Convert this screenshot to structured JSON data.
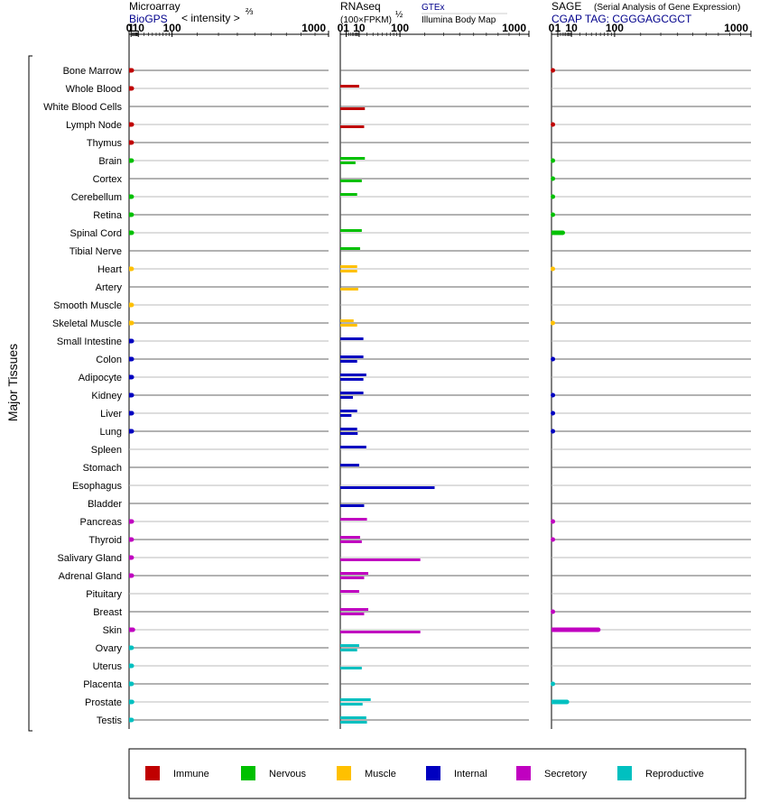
{
  "panels": {
    "microarray": {
      "title": "Microarray",
      "source": "BioGPS",
      "scale_label": "< intensity >",
      "exponent": "⅔",
      "ticks": [
        "0",
        "1",
        "10",
        "100",
        "1000"
      ]
    },
    "rnaseq": {
      "title": "RNAseq",
      "unit": "(100×FPKM)",
      "exponent": "½",
      "source_a": "GTEx",
      "source_b": "Illumina Body Map",
      "ticks": [
        "0",
        "1",
        "10",
        "100",
        "1000"
      ]
    },
    "sage": {
      "title": "SAGE",
      "subtitle": "(Serial Analysis of Gene Expression)",
      "tag": "CGAP TAG: CGGGAGCGCT",
      "ticks": [
        "0",
        "1",
        "10",
        "100",
        "1000"
      ]
    }
  },
  "y_axis_label": "Major Tissues",
  "colors": {
    "Immune": "#c00000",
    "Nervous": "#00c000",
    "Muscle": "#ffc000",
    "Internal": "#0000c0",
    "Secretory": "#c000c0",
    "Reproductive": "#00c0c0"
  },
  "legend": [
    "Immune",
    "Nervous",
    "Muscle",
    "Internal",
    "Secretory",
    "Reproductive"
  ],
  "chart_data": {
    "type": "bar",
    "axis_scale": "power",
    "xlim": [
      0,
      1000
    ],
    "tissues": [
      {
        "name": "Bone Marrow",
        "group": "Immune",
        "micro": 1.6,
        "gtex": null,
        "ibm": null,
        "sage": 0.05
      },
      {
        "name": "Whole Blood",
        "group": "Immune",
        "micro": 1.6,
        "gtex": 10,
        "ibm": null,
        "sage": null
      },
      {
        "name": "White Blood Cells",
        "group": "Immune",
        "micro": null,
        "gtex": null,
        "ibm": 17,
        "sage": null
      },
      {
        "name": "Lymph Node",
        "group": "Immune",
        "micro": 1.6,
        "gtex": null,
        "ibm": 16,
        "sage": 0.05
      },
      {
        "name": "Thymus",
        "group": "Immune",
        "micro": 1.5,
        "gtex": null,
        "ibm": null,
        "sage": null
      },
      {
        "name": "Brain",
        "group": "Nervous",
        "micro": 1.5,
        "gtex": 17,
        "ibm": 6.5,
        "sage": 0.05
      },
      {
        "name": "Cortex",
        "group": "Nervous",
        "micro": null,
        "gtex": null,
        "ibm": 13,
        "sage": 0.05
      },
      {
        "name": "Cerebellum",
        "group": "Nervous",
        "micro": 1.5,
        "gtex": 8,
        "ibm": null,
        "sage": 0.05
      },
      {
        "name": "Retina",
        "group": "Nervous",
        "micro": 1.5,
        "gtex": null,
        "ibm": null,
        "sage": 0.05
      },
      {
        "name": "Spinal Cord",
        "group": "Nervous",
        "micro": 1.6,
        "gtex": 13,
        "ibm": null,
        "sage": 3.2
      },
      {
        "name": "Tibial Nerve",
        "group": "Nervous",
        "micro": null,
        "gtex": 11,
        "ibm": null,
        "sage": null
      },
      {
        "name": "Heart",
        "group": "Muscle",
        "micro": 1.5,
        "gtex": 8,
        "ibm": 8,
        "sage": 0.03
      },
      {
        "name": "Artery",
        "group": "Muscle",
        "micro": null,
        "gtex": null,
        "ibm": 9,
        "sage": null
      },
      {
        "name": "Smooth Muscle",
        "group": "Muscle",
        "micro": 1.5,
        "gtex": null,
        "ibm": null,
        "sage": null
      },
      {
        "name": "Skeletal Muscle",
        "group": "Muscle",
        "micro": 1.6,
        "gtex": 5,
        "ibm": 8,
        "sage": 0.03
      },
      {
        "name": "Small Intestine",
        "group": "Internal",
        "micro": 1.6,
        "gtex": 15,
        "ibm": null,
        "sage": null
      },
      {
        "name": "Colon",
        "group": "Internal",
        "micro": 1.6,
        "gtex": 15,
        "ibm": 8,
        "sage": 0.05
      },
      {
        "name": "Adipocyte",
        "group": "Internal",
        "micro": 1.6,
        "gtex": 19,
        "ibm": 15,
        "sage": null
      },
      {
        "name": "Kidney",
        "group": "Internal",
        "micro": 1.6,
        "gtex": 15,
        "ibm": 4.5,
        "sage": 0.05
      },
      {
        "name": "Liver",
        "group": "Internal",
        "micro": 1.6,
        "gtex": 8,
        "ibm": 3.5,
        "sage": 0.05
      },
      {
        "name": "Lung",
        "group": "Internal",
        "micro": 1.6,
        "gtex": 8,
        "ibm": 8.5,
        "sage": 0.05
      },
      {
        "name": "Spleen",
        "group": "Internal",
        "micro": null,
        "gtex": 19,
        "ibm": null,
        "sage": null
      },
      {
        "name": "Stomach",
        "group": "Internal",
        "micro": null,
        "gtex": 10,
        "ibm": null,
        "sage": null
      },
      {
        "name": "Esophagus",
        "group": "Internal",
        "micro": null,
        "gtex": null,
        "ibm": 250,
        "sage": null
      },
      {
        "name": "Bladder",
        "group": "Internal",
        "micro": null,
        "gtex": null,
        "ibm": 16,
        "sage": null
      },
      {
        "name": "Pancreas",
        "group": "Secretory",
        "micro": 1.6,
        "gtex": 20,
        "ibm": null,
        "sage": 0.05
      },
      {
        "name": "Thyroid",
        "group": "Secretory",
        "micro": 1.5,
        "gtex": 11,
        "ibm": 13,
        "sage": 0.05
      },
      {
        "name": "Salivary Gland",
        "group": "Secretory",
        "micro": 1.5,
        "gtex": null,
        "ibm": 180,
        "sage": null
      },
      {
        "name": "Adrenal Gland",
        "group": "Secretory",
        "micro": 1.6,
        "gtex": 22,
        "ibm": 16,
        "sage": null
      },
      {
        "name": "Pituitary",
        "group": "Secretory",
        "micro": null,
        "gtex": 10,
        "ibm": null,
        "sage": null
      },
      {
        "name": "Breast",
        "group": "Secretory",
        "micro": null,
        "gtex": 22,
        "ibm": 16,
        "sage": 0.05
      },
      {
        "name": "Skin",
        "group": "Secretory",
        "micro": 2.7,
        "gtex": null,
        "ibm": 180,
        "sage": 55
      },
      {
        "name": "Ovary",
        "group": "Reproductive",
        "micro": 1.5,
        "gtex": 10,
        "ibm": 8,
        "sage": null
      },
      {
        "name": "Uterus",
        "group": "Reproductive",
        "micro": 1.6,
        "gtex": null,
        "ibm": 13,
        "sage": null
      },
      {
        "name": "Placenta",
        "group": "Reproductive",
        "micro": 1.5,
        "gtex": null,
        "ibm": null,
        "sage": 0.05
      },
      {
        "name": "Prostate",
        "group": "Reproductive",
        "micro": 1.8,
        "gtex": 26,
        "ibm": 14,
        "sage": 6
      },
      {
        "name": "Testis",
        "group": "Reproductive",
        "micro": 1.5,
        "gtex": 19,
        "ibm": 20,
        "sage": null
      }
    ]
  }
}
